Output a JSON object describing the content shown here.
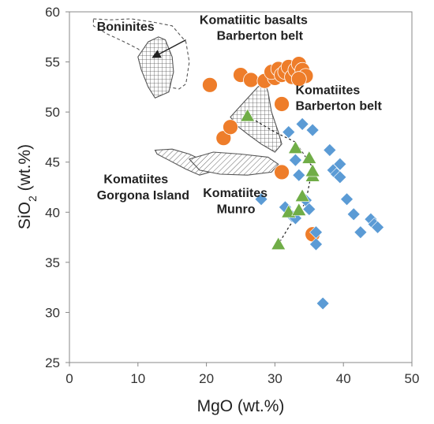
{
  "chart_data": {
    "type": "scatter",
    "xlabel": "MgO (wt.%)",
    "ylabel_main": "SiO",
    "ylabel_sub": "2",
    "ylabel_tail": " (wt.%)",
    "xlim": [
      0,
      50
    ],
    "ylim": [
      25,
      60
    ],
    "xticks": [
      0,
      10,
      20,
      30,
      40,
      50
    ],
    "yticks": [
      25,
      30,
      35,
      40,
      45,
      50,
      55,
      60
    ],
    "grid": false,
    "colors": {
      "circle": "#ee7d2a",
      "diamond": "#5b9bd5",
      "triangle": "#70ad47",
      "region_fill": "#ffffff",
      "region_stroke": "#555555"
    },
    "series": [
      {
        "marker": "circle",
        "points": [
          [
            20.5,
            52.7
          ],
          [
            22.5,
            47.4
          ],
          [
            23.5,
            48.5
          ],
          [
            25,
            53.7
          ],
          [
            26.5,
            53.2
          ],
          [
            28.5,
            53.1
          ],
          [
            30,
            53.4
          ],
          [
            29.5,
            54.0
          ],
          [
            30.5,
            54.3
          ],
          [
            31,
            53.7
          ],
          [
            31.5,
            54.0
          ],
          [
            32,
            54.5
          ],
          [
            32.5,
            53.5
          ],
          [
            33,
            54.2
          ],
          [
            33.5,
            54.8
          ],
          [
            34,
            54.2
          ],
          [
            34.5,
            53.6
          ],
          [
            33.5,
            53.3
          ],
          [
            31,
            50.8
          ],
          [
            31,
            44.0
          ],
          [
            35.5,
            37.8
          ]
        ]
      },
      {
        "marker": "diamond",
        "points": [
          [
            28,
            41.3
          ],
          [
            31.5,
            40.5
          ],
          [
            32,
            48.0
          ],
          [
            32.5,
            39.6
          ],
          [
            33,
            39.4
          ],
          [
            33.5,
            43.7
          ],
          [
            33,
            45.2
          ],
          [
            34,
            48.8
          ],
          [
            34.5,
            41.2
          ],
          [
            35,
            40.3
          ],
          [
            35.5,
            48.2
          ],
          [
            36,
            38.0
          ],
          [
            36,
            36.8
          ],
          [
            37,
            30.9
          ],
          [
            38,
            46.2
          ],
          [
            38.5,
            44.2
          ],
          [
            39,
            43.8
          ],
          [
            39.5,
            44.8
          ],
          [
            39.5,
            43.5
          ],
          [
            40.5,
            41.3
          ],
          [
            41.5,
            39.8
          ],
          [
            42.5,
            38.0
          ],
          [
            44,
            39.3
          ],
          [
            44.5,
            38.8
          ],
          [
            45,
            38.5
          ]
        ]
      },
      {
        "marker": "triangle",
        "points": [
          [
            26,
            49.6
          ],
          [
            30.5,
            36.8
          ],
          [
            32,
            40.0
          ],
          [
            33,
            46.4
          ],
          [
            33.5,
            40.2
          ],
          [
            34,
            41.6
          ],
          [
            35,
            45.4
          ],
          [
            35.5,
            43.6
          ],
          [
            35.5,
            44.1
          ]
        ]
      }
    ],
    "trend_line": [
      [
        26,
        49.6
      ],
      [
        30,
        48
      ],
      [
        33,
        47
      ],
      [
        35.5,
        44.5
      ],
      [
        34.5,
        41
      ],
      [
        32,
        38.5
      ],
      [
        30.5,
        36.8
      ]
    ],
    "regions": [
      {
        "name": "boninites",
        "style": "dashed",
        "outline": [
          [
            3.5,
            59.3
          ],
          [
            6,
            59.2
          ],
          [
            9,
            59.3
          ],
          [
            12,
            59.0
          ],
          [
            15,
            58.6
          ],
          [
            17,
            57.0
          ],
          [
            17.5,
            55.0
          ],
          [
            17,
            52.8
          ],
          [
            16,
            52.3
          ],
          [
            14.5,
            52.5
          ],
          [
            13,
            54.0
          ],
          [
            11.5,
            55.5
          ],
          [
            10,
            56.3
          ],
          [
            8,
            57.0
          ],
          [
            5.5,
            57.8
          ],
          [
            3.5,
            58.6
          ]
        ]
      },
      {
        "name": "boninites-core",
        "style": "grid",
        "outline": [
          [
            10,
            55.5
          ],
          [
            11.5,
            57.0
          ],
          [
            13,
            57.5
          ],
          [
            14,
            57.2
          ],
          [
            15,
            55.5
          ],
          [
            15.2,
            54.0
          ],
          [
            14.5,
            52.0
          ],
          [
            12.5,
            51.4
          ],
          [
            11.5,
            52.5
          ],
          [
            10.5,
            54.2
          ]
        ]
      },
      {
        "name": "barberton-komatiites",
        "style": "grid",
        "outline": [
          [
            23.5,
            49.5
          ],
          [
            25.5,
            51.0
          ],
          [
            27.5,
            52.5
          ],
          [
            28.5,
            53.0
          ],
          [
            29,
            52.0
          ],
          [
            29.5,
            50.0
          ],
          [
            30.5,
            48.0
          ],
          [
            31,
            46.8
          ],
          [
            30,
            46.0
          ],
          [
            28,
            46.8
          ],
          [
            26,
            47.8
          ],
          [
            24.5,
            48.6
          ]
        ]
      },
      {
        "name": "gorgona",
        "style": "hatch",
        "outline": [
          [
            12.5,
            46.2
          ],
          [
            15,
            46.3
          ],
          [
            17.5,
            45.8
          ],
          [
            20,
            45.0
          ],
          [
            20.5,
            44.0
          ],
          [
            19,
            43.7
          ],
          [
            17,
            44.3
          ],
          [
            14.5,
            45.2
          ],
          [
            12.8,
            45.8
          ]
        ]
      },
      {
        "name": "munro",
        "style": "hatch",
        "outline": [
          [
            17.5,
            45.3
          ],
          [
            21,
            46.0
          ],
          [
            25,
            45.8
          ],
          [
            29,
            45.5
          ],
          [
            30.5,
            44.8
          ],
          [
            29.5,
            44.0
          ],
          [
            26,
            43.7
          ],
          [
            22,
            43.8
          ],
          [
            19,
            44.2
          ]
        ]
      }
    ],
    "labels": [
      {
        "text": "Boninites",
        "at": [
          4,
          58.1
        ]
      },
      {
        "text": "Komatiitic basalts",
        "at": [
          19,
          58.8
        ]
      },
      {
        "text": "Barberton belt",
        "at": [
          21.5,
          57.2
        ]
      },
      {
        "text": "Komatiites",
        "at": [
          33,
          51.8
        ]
      },
      {
        "text": "Barberton belt",
        "at": [
          33,
          50.2
        ]
      },
      {
        "text": "Komatiites",
        "at": [
          5,
          42.9
        ]
      },
      {
        "text": "Gorgona Island",
        "at": [
          4,
          41.3
        ]
      },
      {
        "text": "Komatiites",
        "at": [
          19.5,
          41.5
        ]
      },
      {
        "text": "Munro",
        "at": [
          21.5,
          39.9
        ]
      }
    ],
    "arrow": {
      "from": [
        17,
        57.2
      ],
      "to": [
        12.3,
        55.5
      ]
    }
  }
}
